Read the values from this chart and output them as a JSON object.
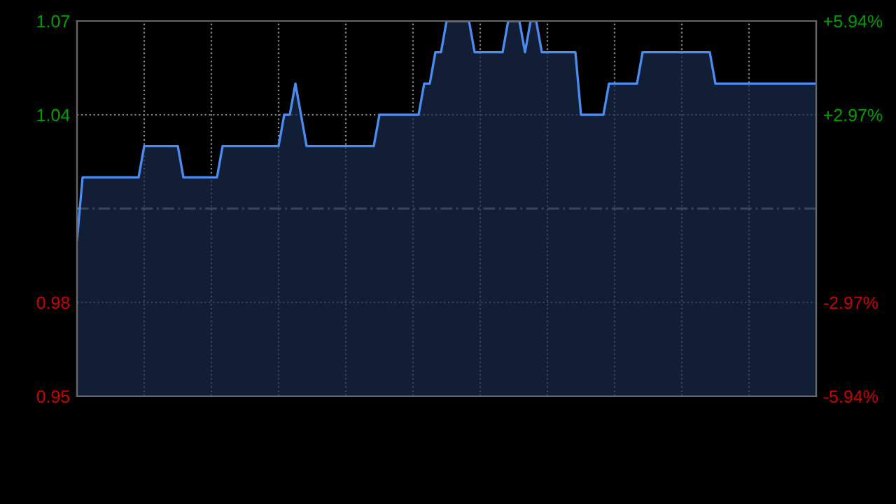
{
  "chart_data": {
    "type": "area",
    "categories": [
      null,
      null,
      null,
      null,
      null,
      null,
      null,
      null,
      null,
      null,
      null,
      null,
      null,
      null,
      null,
      null,
      null,
      null,
      null,
      null,
      null,
      null,
      null,
      null,
      null,
      null,
      null,
      null,
      null,
      null,
      null,
      null,
      null,
      null,
      null,
      null,
      null,
      null,
      null,
      null,
      null,
      null,
      null,
      null,
      null,
      null,
      null,
      null,
      null,
      null,
      null,
      null,
      null,
      null,
      null,
      null,
      null,
      null,
      null,
      null,
      null,
      null,
      null,
      null,
      null,
      null,
      null,
      null,
      null,
      null,
      null,
      null,
      null,
      null,
      null,
      null,
      null,
      null,
      null,
      null,
      null,
      null,
      null,
      null,
      null,
      null,
      null,
      null,
      null,
      null,
      null,
      null,
      null,
      null,
      null,
      null,
      null,
      null,
      null,
      null,
      null,
      null,
      null,
      null,
      null,
      null,
      null,
      null,
      null,
      null,
      null,
      null,
      null,
      null,
      null,
      null,
      null,
      null,
      null,
      null,
      null,
      null,
      null,
      null,
      null,
      null,
      null,
      null,
      null,
      null,
      null,
      null,
      null
    ],
    "series": [
      {
        "color": "#4a8cf0",
        "values": [
          1.0,
          1.02,
          1.02,
          1.02,
          1.02,
          1.02,
          1.02,
          1.02,
          1.02,
          1.02,
          1.02,
          1.02,
          1.03,
          1.03,
          1.03,
          1.03,
          1.03,
          1.03,
          1.03,
          1.02,
          1.02,
          1.02,
          1.02,
          1.02,
          1.02,
          1.02,
          1.03,
          1.03,
          1.03,
          1.03,
          1.03,
          1.03,
          1.03,
          1.03,
          1.03,
          1.03,
          1.03,
          1.04,
          1.04,
          1.05,
          1.04,
          1.03,
          1.03,
          1.03,
          1.03,
          1.03,
          1.03,
          1.03,
          1.03,
          1.03,
          1.03,
          1.03,
          1.03,
          1.03,
          1.04,
          1.04,
          1.04,
          1.04,
          1.04,
          1.04,
          1.04,
          1.04,
          1.05,
          1.05,
          1.06,
          1.06,
          1.07,
          1.07,
          1.07,
          1.07,
          1.07,
          1.06,
          1.06,
          1.06,
          1.06,
          1.06,
          1.06,
          1.07,
          1.07,
          1.07,
          1.06,
          1.07,
          1.07,
          1.06,
          1.06,
          1.06,
          1.06,
          1.06,
          1.06,
          1.06,
          1.04,
          1.04,
          1.04,
          1.04,
          1.04,
          1.05,
          1.05,
          1.05,
          1.05,
          1.05,
          1.05,
          1.06,
          1.06,
          1.06,
          1.06,
          1.06,
          1.06,
          1.06,
          1.06,
          1.06,
          1.06,
          1.06,
          1.06,
          1.06,
          1.05,
          1.05,
          1.05,
          1.05,
          1.05,
          1.05,
          1.05,
          1.05,
          1.05,
          1.05,
          1.05,
          1.05,
          1.05,
          1.05,
          1.05,
          1.05,
          1.05,
          1.05,
          1.05
        ]
      }
    ],
    "ylim": [
      0.95,
      1.07
    ],
    "yticks": [
      0.95,
      0.98,
      1.04,
      1.07
    ],
    "y2lim": [
      -5.94,
      5.94
    ],
    "y2ticks": [
      {
        "value": -5.94,
        "label": "-5.94%"
      },
      {
        "value": -2.97,
        "label": "-2.97%"
      },
      {
        "value": 2.97,
        "label": "+2.97%"
      },
      {
        "value": 5.94,
        "label": "+5.94%"
      }
    ],
    "ref_lines": [
      {
        "axis": "y",
        "value": 1.01,
        "color": "#888888",
        "line_style": "dashed"
      }
    ],
    "grid": true
  }
}
